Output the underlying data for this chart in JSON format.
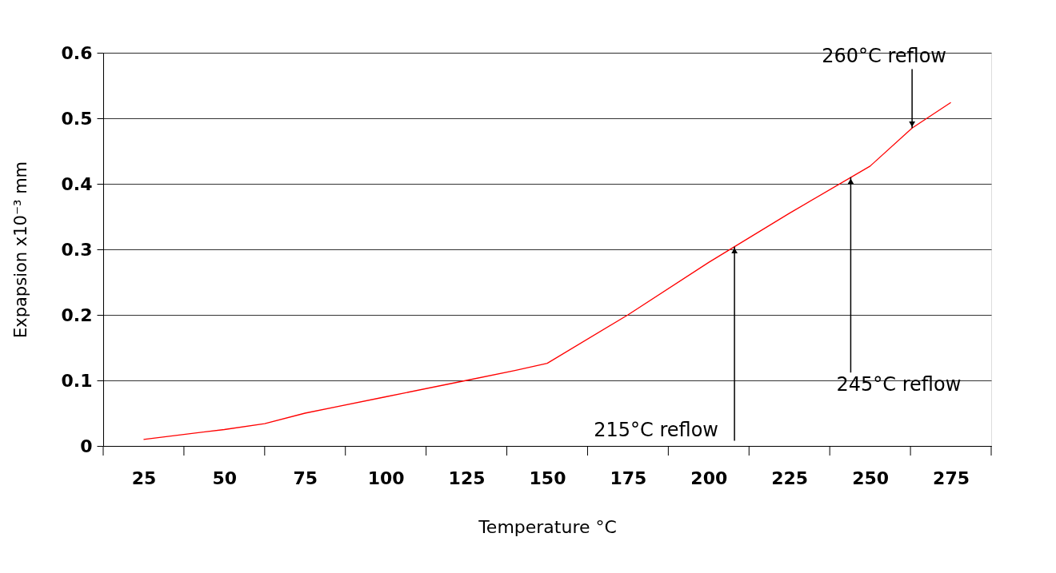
{
  "chart_data": {
    "type": "line",
    "xlabel": "Temperature °C",
    "ylabel": "Expapsion x10⁻³ mm",
    "x": [
      25,
      50,
      62.5,
      75,
      100,
      125,
      140,
      150,
      175,
      200,
      225,
      250,
      263,
      275
    ],
    "series": [
      {
        "color": "#ff0000",
        "values": [
          0.01,
          0.025,
          0.034,
          0.05,
          0.075,
          0.1,
          0.115,
          0.126,
          0.2,
          0.28,
          0.355,
          0.427,
          0.485,
          0.524
        ]
      }
    ],
    "xlim": [
      12.5,
      287.5
    ],
    "xticks": [
      {
        "value": 12.5,
        "label": null
      },
      25,
      {
        "value": 37.5,
        "label": null
      },
      50,
      {
        "value": 62.5,
        "label": null
      },
      75,
      {
        "value": 87.5,
        "label": null
      },
      100,
      {
        "value": 112.5,
        "label": null
      },
      125,
      {
        "value": 137.5,
        "label": null
      },
      150,
      {
        "value": 162.5,
        "label": null
      },
      175,
      {
        "value": 187.5,
        "label": null
      },
      200,
      {
        "value": 212.5,
        "label": null
      },
      225,
      {
        "value": 237.5,
        "label": null
      },
      250,
      {
        "value": 262.5,
        "label": null
      },
      275,
      {
        "value": 287.5,
        "label": null
      }
    ],
    "ylim": [
      0,
      0.6
    ],
    "yticks": [
      0,
      0.1,
      0.2,
      0.3,
      0.4,
      0.5,
      0.6
    ],
    "grid": "y",
    "marker": "none",
    "line_style": "solid",
    "annotations": [
      {
        "text": "215°C reflow",
        "x": 208,
        "y": 0.304
      },
      {
        "text": "245°C reflow",
        "x": 244,
        "y": 0.41
      },
      {
        "text": "260°C reflow",
        "x": 263,
        "y": 0.485
      }
    ]
  }
}
